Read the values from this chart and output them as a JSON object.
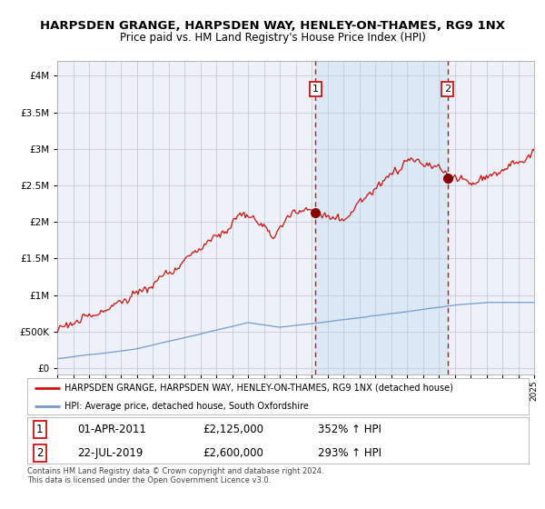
{
  "title": "HARPSDEN GRANGE, HARPSDEN WAY, HENLEY-ON-THAMES, RG9 1NX",
  "subtitle": "Price paid vs. HM Land Registry's House Price Index (HPI)",
  "legend_line1": "HARPSDEN GRANGE, HARPSDEN WAY, HENLEY-ON-THAMES, RG9 1NX (detached house)",
  "legend_line2": "HPI: Average price, detached house, South Oxfordshire",
  "annotation1_date": "01-APR-2011",
  "annotation1_price": 2125000,
  "annotation1_hpi": "352% ↑ HPI",
  "annotation2_date": "22-JUL-2019",
  "annotation2_price": 2600000,
  "annotation2_hpi": "293% ↑ HPI",
  "event1_year": 2011.25,
  "event2_year": 2019.55,
  "year_start": 1995,
  "year_end": 2025,
  "ylim_min": -80000,
  "ylim_max": 4200000,
  "background_color": "#ffffff",
  "plot_bg_color": "#eef2f8",
  "grid_color": "#c8d0de",
  "hpi_line_color": "#7799cc",
  "price_line_color": "#cc1111",
  "highlight_color": "#dbe8f5",
  "dashed_line_color": "#cc1111",
  "footer_text": "Contains HM Land Registry data © Crown copyright and database right 2024.\nThis data is licensed under the Open Government Licence v3.0.",
  "title_fontsize": 9.5,
  "subtitle_fontsize": 8.5,
  "yticks": [
    0,
    500000,
    1000000,
    1500000,
    2000000,
    2500000,
    3000000,
    3500000,
    4000000
  ]
}
